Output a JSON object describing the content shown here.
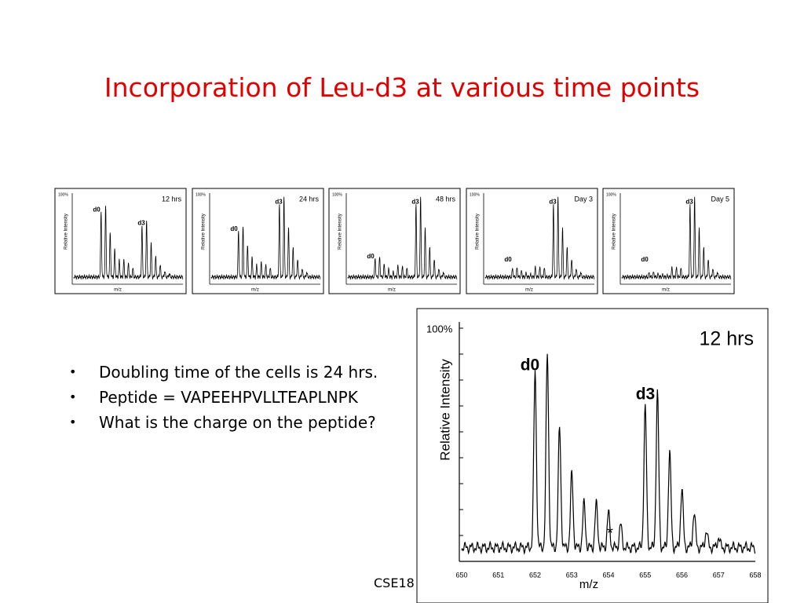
{
  "title": "Incorporation of Leu-d3 at various time points",
  "thumbnails": [
    {
      "time": "12 hrs",
      "top": "100%",
      "d0": "d0",
      "d3": "d3",
      "y_label": "Relative Intensity",
      "x_label": "m/z"
    },
    {
      "time": "24 hrs",
      "top": "100%",
      "d0": "d0",
      "d3": "d3",
      "y_label": "Relative Intensity",
      "x_label": "m/z"
    },
    {
      "time": "48 hrs",
      "top": "100%",
      "d0": "d0",
      "d3": "d3",
      "y_label": "Relative Intensity",
      "x_label": "m/z"
    },
    {
      "time": "Day 3",
      "top": "100%",
      "d0": "d0",
      "d3": "d3",
      "y_label": "Relative Intensity",
      "x_label": "m/z"
    },
    {
      "time": "Day 5",
      "top": "100%",
      "d0": "d0",
      "d3": "d3",
      "y_label": "Relative Intensity",
      "x_label": "m/z"
    }
  ],
  "spectrum": {
    "time": "12 hrs",
    "top": "100%",
    "d0": "d0",
    "d3": "d3",
    "star": "*",
    "y_label": "Relative Intensity",
    "x_label": "m/z",
    "x_ticks": [
      "650",
      "651",
      "652",
      "653",
      "654",
      "655",
      "656",
      "657",
      "658"
    ]
  },
  "bullets": [
    "Doubling time of the cells is 24 hrs.",
    "Peptide = VAPEEHPVLLTEAPLNPK",
    "What is the charge on the peptide?"
  ],
  "footer": "CSE18"
}
